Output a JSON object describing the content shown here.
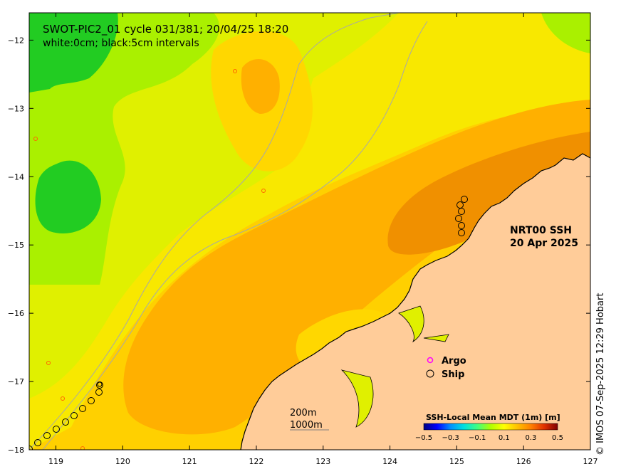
{
  "header": {
    "title_line1": "SWOT-PIC2_01 cycle 031/381; 20/04/25 18:20",
    "title_line2": "white:0cm; black:5cm intervals"
  },
  "annotation": {
    "line1": "NRT00 SSH",
    "line2": "20 Apr 2025"
  },
  "legend": {
    "argo_label": "Argo",
    "ship_label": "Ship",
    "argo_color": "#ff00ff",
    "ship_color": "#000000"
  },
  "scale": {
    "label_short": "200m",
    "label_long": "1000m"
  },
  "colorbar": {
    "title": "SSH-Local Mean MDT (1m) [m]",
    "ticks": [
      "−0.5",
      "−0.3",
      "−0.1",
      "0.1",
      "0.3",
      "0.5"
    ],
    "colors": [
      "#00007f",
      "#0000ff",
      "#0080ff",
      "#00e0e0",
      "#00ff80",
      "#80ff00",
      "#ffff00",
      "#ffd000",
      "#ffa000",
      "#ff6000",
      "#e02000",
      "#7f0000"
    ]
  },
  "axes": {
    "lon_ticks": [
      "119",
      "120",
      "121",
      "122",
      "123",
      "124",
      "125",
      "126",
      "127"
    ],
    "lat_ticks": [
      "−12",
      "−13",
      "−14",
      "−15",
      "−16",
      "−17",
      "−18"
    ],
    "lon_values": [
      119,
      120,
      121,
      122,
      123,
      124,
      125,
      126,
      127
    ],
    "lat_values": [
      -12,
      -13,
      -14,
      -15,
      -16,
      -17,
      -18
    ],
    "lon_range": [
      118.6,
      127.0
    ],
    "lat_range": [
      -18.0,
      -11.6
    ]
  },
  "colors": {
    "land": "#ffcc99",
    "ocean_base": "#ffd000",
    "green": "#22cc22",
    "lime": "#aaf000",
    "yellow_green": "#e0f000",
    "yellow": "#f8e800",
    "gold": "#ffd700",
    "orange": "#ffb000",
    "dark_orange": "#f09000",
    "isobath": "#a8a8a8"
  },
  "credit": "© IMOS 07-Sep-2025 12:29 Hobart"
}
